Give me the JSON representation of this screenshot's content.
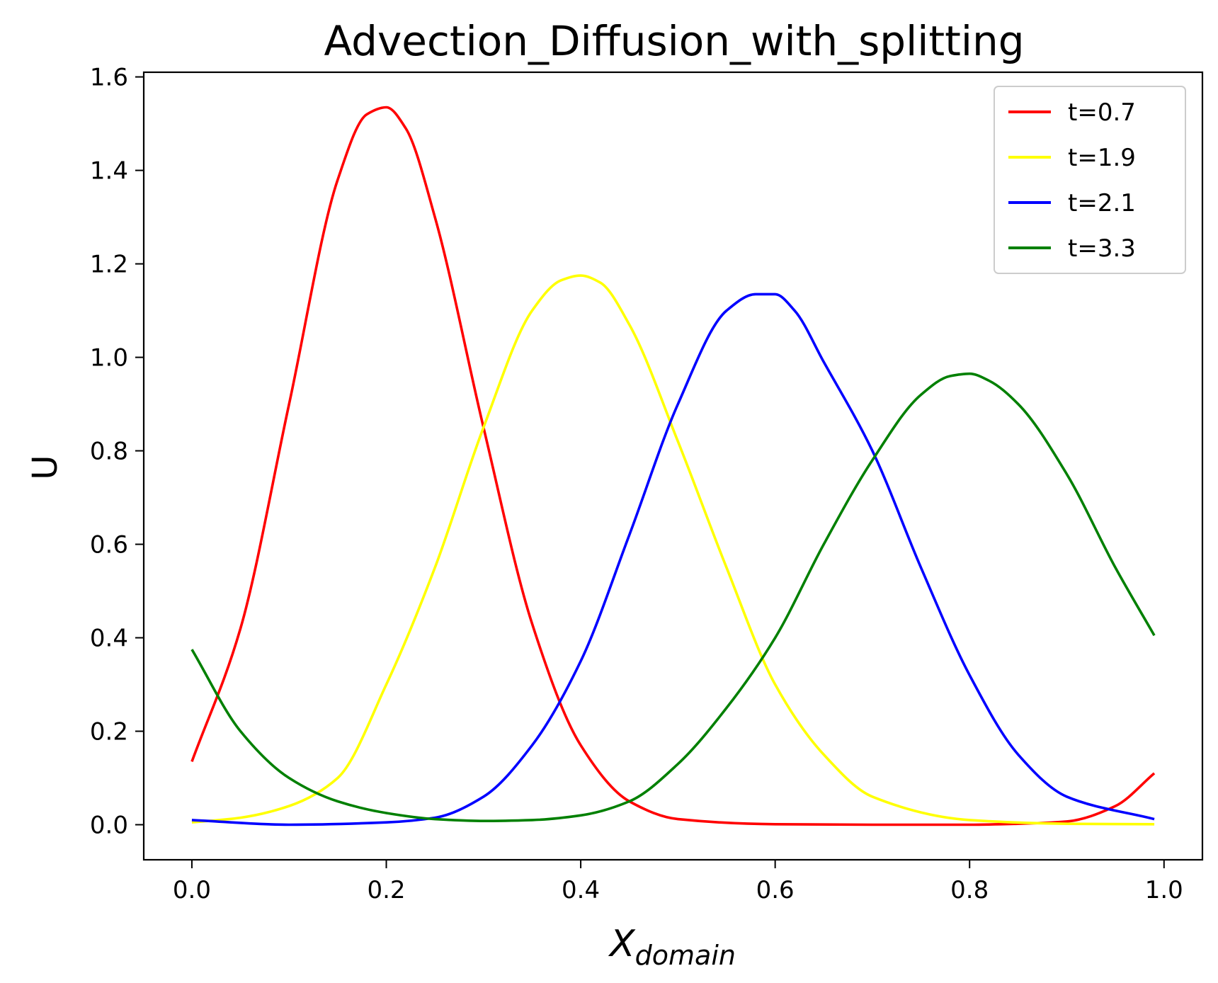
{
  "chart_data": {
    "type": "line",
    "title": "Advection_Diffusion_with_splitting",
    "xlabel": "X",
    "xlabel_subscript": "domain",
    "ylabel": "U",
    "xlim": [
      -0.0495,
      1.0395
    ],
    "ylim": [
      -0.075,
      1.61
    ],
    "x_ticks": [
      0.0,
      0.2,
      0.4,
      0.6,
      0.8,
      1.0
    ],
    "x_tick_labels": [
      "0.0",
      "0.2",
      "0.4",
      "0.6",
      "0.8",
      "1.0"
    ],
    "y_ticks": [
      0.0,
      0.2,
      0.4,
      0.6,
      0.8,
      1.0,
      1.2,
      1.4,
      1.6
    ],
    "y_tick_labels": [
      "0.0",
      "0.2",
      "0.4",
      "0.6",
      "0.8",
      "1.0",
      "1.2",
      "1.4",
      "1.6"
    ],
    "grid": false,
    "legend_position": "top-right",
    "series": [
      {
        "name": "t=0.7",
        "color": "#ff0000",
        "x": [
          0.0,
          0.05,
          0.1,
          0.15,
          0.18,
          0.2,
          0.22,
          0.25,
          0.3,
          0.35,
          0.4,
          0.45,
          0.5,
          0.6,
          0.7,
          0.8,
          0.85,
          0.9,
          0.95,
          0.99
        ],
        "y": [
          0.135,
          0.42,
          0.9,
          1.38,
          1.52,
          1.535,
          1.49,
          1.3,
          0.85,
          0.43,
          0.17,
          0.05,
          0.012,
          0.001,
          0.0,
          0.0,
          0.002,
          0.007,
          0.04,
          0.11
        ]
      },
      {
        "name": "t=1.9",
        "color": "#ffff00",
        "x": [
          0.0,
          0.05,
          0.1,
          0.15,
          0.2,
          0.25,
          0.3,
          0.35,
          0.38,
          0.4,
          0.42,
          0.45,
          0.5,
          0.55,
          0.6,
          0.65,
          0.7,
          0.8,
          0.9,
          0.99
        ],
        "y": [
          0.005,
          0.015,
          0.04,
          0.1,
          0.3,
          0.55,
          0.85,
          1.1,
          1.165,
          1.175,
          1.16,
          1.07,
          0.82,
          0.55,
          0.3,
          0.15,
          0.06,
          0.01,
          0.002,
          0.001
        ]
      },
      {
        "name": "t=2.1",
        "color": "#0000ff",
        "x": [
          0.0,
          0.1,
          0.2,
          0.25,
          0.3,
          0.35,
          0.4,
          0.45,
          0.5,
          0.55,
          0.58,
          0.6,
          0.62,
          0.65,
          0.7,
          0.75,
          0.8,
          0.85,
          0.9,
          0.99
        ],
        "y": [
          0.01,
          0.0,
          0.005,
          0.015,
          0.06,
          0.17,
          0.35,
          0.62,
          0.9,
          1.1,
          1.135,
          1.135,
          1.1,
          0.99,
          0.8,
          0.55,
          0.32,
          0.15,
          0.06,
          0.012
        ]
      },
      {
        "name": "t=3.3",
        "color": "#008000",
        "x": [
          0.0,
          0.05,
          0.1,
          0.15,
          0.2,
          0.25,
          0.3,
          0.35,
          0.4,
          0.45,
          0.5,
          0.55,
          0.6,
          0.65,
          0.7,
          0.75,
          0.78,
          0.8,
          0.82,
          0.85,
          0.9,
          0.95,
          0.99
        ],
        "y": [
          0.375,
          0.2,
          0.1,
          0.05,
          0.025,
          0.012,
          0.008,
          0.01,
          0.02,
          0.05,
          0.13,
          0.25,
          0.4,
          0.6,
          0.78,
          0.92,
          0.96,
          0.965,
          0.95,
          0.9,
          0.75,
          0.55,
          0.405
        ]
      }
    ]
  }
}
